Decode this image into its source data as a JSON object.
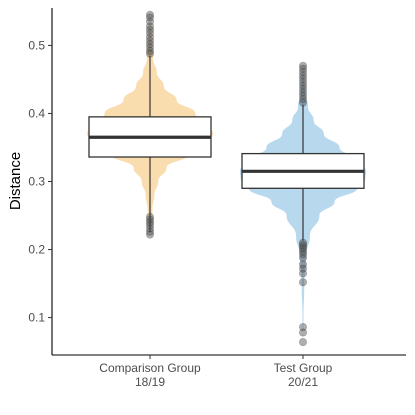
{
  "chart_data": {
    "type": "violin",
    "xlabel": "",
    "ylabel": "Distance",
    "ylim": [
      0.045,
      0.555
    ],
    "yticks": [
      0.1,
      0.2,
      0.3,
      0.4,
      0.5
    ],
    "ytick_labels": [
      "0.1",
      "0.2",
      "0.3",
      "0.4",
      "0.5"
    ],
    "grid": false,
    "legend": "none",
    "groups": [
      {
        "label_line1": "Comparison Group",
        "label_line2": "18/19",
        "color": "#f9ddae",
        "box": {
          "min": 0.226,
          "q1": 0.336,
          "median": 0.365,
          "q3": 0.395,
          "max": 0.485
        },
        "violin": {
          "y": [
            0.222,
            0.24,
            0.26,
            0.28,
            0.3,
            0.32,
            0.34,
            0.36,
            0.37,
            0.38,
            0.4,
            0.42,
            0.44,
            0.46,
            0.48,
            0.5,
            0.52,
            0.545
          ],
          "width": [
            0.0,
            0.02,
            0.04,
            0.07,
            0.13,
            0.26,
            0.62,
            0.96,
            1.0,
            0.97,
            0.72,
            0.42,
            0.22,
            0.11,
            0.05,
            0.025,
            0.012,
            0.0
          ]
        },
        "outliers": [
          0.222,
          0.226,
          0.231,
          0.236,
          0.24,
          0.244,
          0.248,
          0.488,
          0.492,
          0.497,
          0.502,
          0.507,
          0.512,
          0.518,
          0.523,
          0.528,
          0.535,
          0.541,
          0.545
        ]
      },
      {
        "label_line1": "Test Group",
        "label_line2": "20/21",
        "color": "#b7d8ed",
        "box": {
          "min": 0.213,
          "q1": 0.29,
          "median": 0.315,
          "q3": 0.341,
          "max": 0.413
        },
        "violin": {
          "y": [
            0.064,
            0.1,
            0.15,
            0.19,
            0.22,
            0.25,
            0.27,
            0.29,
            0.305,
            0.315,
            0.33,
            0.35,
            0.37,
            0.39,
            0.41,
            0.43,
            0.45,
            0.472
          ],
          "width": [
            0.0,
            0.008,
            0.02,
            0.05,
            0.11,
            0.26,
            0.5,
            0.86,
            0.99,
            1.0,
            0.9,
            0.58,
            0.33,
            0.17,
            0.08,
            0.035,
            0.015,
            0.0
          ]
        },
        "outliers": [
          0.064,
          0.078,
          0.086,
          0.152,
          0.165,
          0.172,
          0.178,
          0.188,
          0.193,
          0.197,
          0.201,
          0.204,
          0.207,
          0.21,
          0.416,
          0.421,
          0.426,
          0.431,
          0.436,
          0.441,
          0.446,
          0.451,
          0.456,
          0.461,
          0.466,
          0.47
        ]
      }
    ]
  }
}
